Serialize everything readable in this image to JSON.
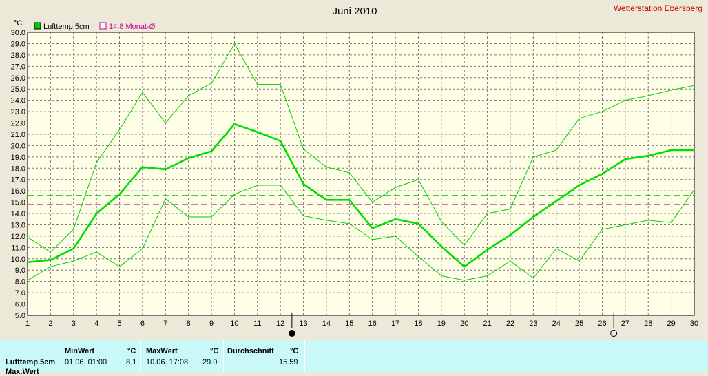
{
  "station": "Wetterstation Ebersberg",
  "chart_data": {
    "type": "line",
    "title": "Juni 2010",
    "unit_label": "°C",
    "x": [
      1,
      2,
      3,
      4,
      5,
      6,
      7,
      8,
      9,
      10,
      11,
      12,
      13,
      14,
      15,
      16,
      17,
      18,
      19,
      20,
      21,
      22,
      23,
      24,
      25,
      26,
      27,
      28,
      29,
      30
    ],
    "xlim": [
      1,
      30
    ],
    "ylim": [
      5.0,
      30.0
    ],
    "y_tick_step": 1.0,
    "grid": true,
    "legend": "top-left",
    "legend_entries": [
      {
        "label": "Lufttemp.5cm",
        "color": "#00cc00",
        "marker": "filled-square"
      },
      {
        "label": "14.8 Monat-Ø",
        "color": "#cc0099",
        "marker": "open-square"
      }
    ],
    "series": [
      {
        "name": "Lufttemp.5cm",
        "role": "mean",
        "color": "#00dd00",
        "values": [
          9.7,
          9.9,
          10.9,
          14.0,
          15.7,
          18.1,
          17.9,
          18.9,
          19.5,
          21.9,
          21.2,
          20.4,
          16.6,
          15.2,
          15.2,
          12.7,
          13.5,
          13.1,
          11.1,
          9.3,
          10.8,
          12.1,
          13.7,
          15.1,
          16.5,
          17.5,
          18.8,
          19.1,
          19.6,
          19.6
        ]
      },
      {
        "role": "max",
        "color": "#00cc00",
        "values": [
          11.9,
          10.6,
          12.6,
          18.5,
          21.4,
          24.7,
          22.0,
          24.4,
          25.5,
          29.0,
          25.4,
          25.4,
          19.7,
          18.1,
          17.6,
          15.0,
          16.3,
          17.0,
          13.3,
          11.2,
          14.0,
          14.4,
          19.0,
          19.6,
          22.4,
          23.0,
          24.0,
          24.4,
          24.9,
          25.3
        ]
      },
      {
        "role": "min",
        "color": "#00cc00",
        "values": [
          8.1,
          9.3,
          9.8,
          10.6,
          9.3,
          10.9,
          15.3,
          13.7,
          13.7,
          15.7,
          16.5,
          16.5,
          13.8,
          13.4,
          13.1,
          11.7,
          12.0,
          10.2,
          8.5,
          8.1,
          8.5,
          9.8,
          8.3,
          10.9,
          9.8,
          12.6,
          13.0,
          13.4,
          13.2,
          16.1
        ]
      }
    ],
    "reference_lines": [
      {
        "value": 15.6,
        "color": "#00bb00",
        "style": "dashed"
      },
      {
        "value": 14.8,
        "color": "#aa2288",
        "style": "dashed"
      }
    ],
    "moon_phases": [
      {
        "day": 12.5,
        "phase": "new-moon"
      },
      {
        "day": 26.5,
        "phase": "full-moon"
      }
    ]
  },
  "stats_panel": {
    "row_label": "Lufttemp.5cm",
    "next_row_label": "Max.Wert",
    "min": {
      "header": "MinWert",
      "unit": "°C",
      "datetime": "01.06. 01:00",
      "value": "8.1"
    },
    "max": {
      "header": "MaxWert",
      "unit": "°C",
      "datetime": "10.06. 17:08",
      "value": "29.0"
    },
    "avg": {
      "header": "Durchschnitt",
      "unit": "°C",
      "value": "15.59"
    }
  }
}
